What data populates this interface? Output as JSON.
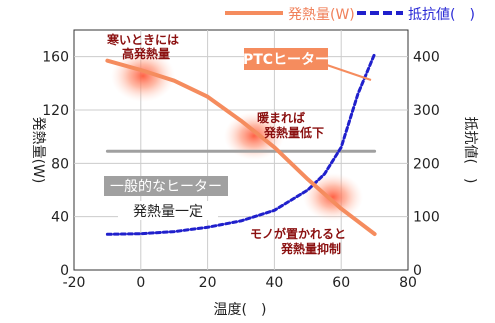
{
  "chart_data": {
    "type": "line",
    "xlabel": "温度(　)",
    "ylabel_left": "発熱量(W)",
    "ylabel_right": "抵抗値(　)",
    "xlim": [
      -20,
      80
    ],
    "ylim_left": [
      0,
      180
    ],
    "ylim_right": [
      0,
      450
    ],
    "x_ticks": [
      "-20",
      "0",
      "20",
      "40",
      "60",
      "80"
    ],
    "y_left_ticks": [
      "0",
      "40",
      "80",
      "120",
      "160"
    ],
    "y_right_ticks": [
      "0",
      "100",
      "200",
      "300",
      "400"
    ],
    "grid": true,
    "legend_position": "top",
    "series": [
      {
        "name": "発熱量(W)",
        "axis": "left",
        "color": "#f58c5e",
        "style": "solid",
        "points": [
          [
            -10,
            157
          ],
          [
            0,
            150
          ],
          [
            10,
            142
          ],
          [
            20,
            130
          ],
          [
            30,
            112
          ],
          [
            40,
            92
          ],
          [
            50,
            68
          ],
          [
            60,
            46
          ],
          [
            70,
            27
          ]
        ]
      },
      {
        "name": "抵抗値(　)",
        "axis": "right",
        "color": "#2020cc",
        "style": "dashed",
        "points": [
          [
            -10,
            67
          ],
          [
            0,
            68
          ],
          [
            10,
            72
          ],
          [
            20,
            80
          ],
          [
            30,
            92
          ],
          [
            40,
            112
          ],
          [
            50,
            150
          ],
          [
            55,
            180
          ],
          [
            60,
            230
          ],
          [
            65,
            330
          ],
          [
            70,
            405
          ]
        ]
      },
      {
        "name": "一般的なヒーター 発熱量一定",
        "axis": "left",
        "color": "#a0a0a0",
        "style": "solid",
        "points": [
          [
            -10,
            89
          ],
          [
            70,
            89
          ]
        ]
      }
    ],
    "annotations": {
      "cold": [
        "寒いときには",
        "高発熱量"
      ],
      "warm": [
        "暖まれば",
        "発熱量低下"
      ],
      "object": [
        "モノが置かれると",
        "発熱量抑制"
      ],
      "ptc": "PTCヒーター",
      "general": "一般的なヒーター",
      "constant": "発熱量一定"
    }
  }
}
